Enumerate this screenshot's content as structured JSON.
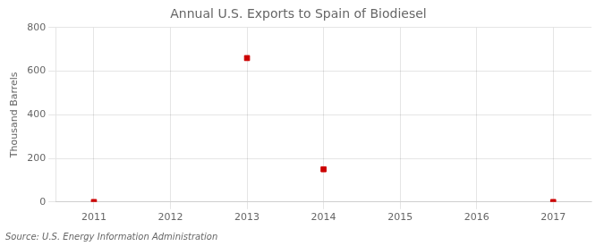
{
  "chart_data": {
    "type": "scatter",
    "title": "Annual U.S. Exports to Spain of Biodiesel",
    "ylabel": "Thousand Barrels",
    "source": "Source: U.S. Energy Information Administration",
    "x": [
      2011,
      2013,
      2014,
      2017
    ],
    "values": [
      0,
      660,
      150,
      0
    ],
    "color": "#cc0000",
    "marker": "square",
    "xlim": [
      2010.5,
      2017.5
    ],
    "xticks": [
      2011,
      2012,
      2013,
      2014,
      2015,
      2016,
      2017
    ],
    "ylim": [
      0,
      800
    ],
    "yticks": [
      0,
      200,
      400,
      600,
      800
    ],
    "grid": true
  }
}
